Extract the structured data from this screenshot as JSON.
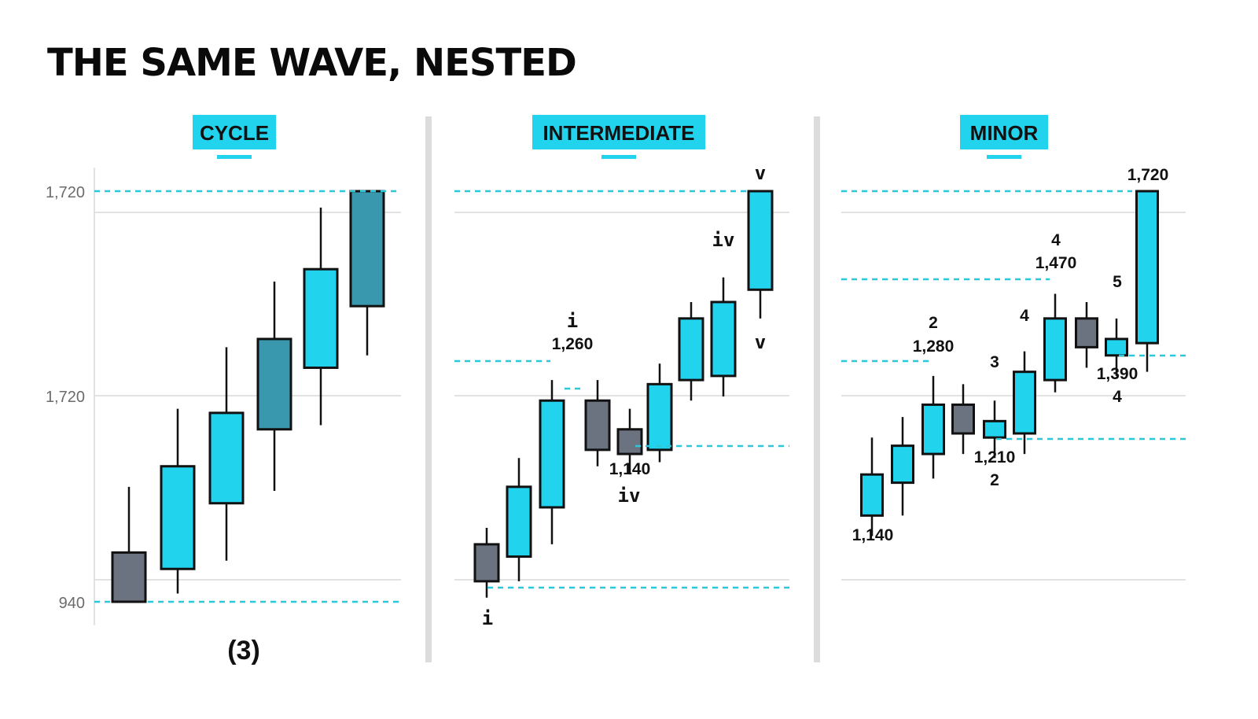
{
  "title": "THE SAME WAVE, NESTED",
  "colors": {
    "bull": "#22d3ee",
    "bull_dark": "#3a98ae",
    "bear": "#6b7280",
    "outline": "#111111",
    "dashed": "#2ec7d8",
    "grid": "#d9d9d9",
    "divider": "#dcdcdc"
  },
  "chart_data": [
    {
      "type": "candlestick",
      "title": "CYCLE",
      "y_tick_labels": [
        "1,720",
        "1,720",
        "940"
      ],
      "bottom_label": "(3)",
      "candles": [
        {
          "open": 0.0,
          "close": 0.12,
          "high": 0.28,
          "low": 0.0,
          "color": "bear"
        },
        {
          "open": 0.08,
          "close": 0.33,
          "high": 0.47,
          "low": 0.02,
          "color": "bull"
        },
        {
          "open": 0.24,
          "close": 0.46,
          "high": 0.62,
          "low": 0.1,
          "color": "bull"
        },
        {
          "open": 0.42,
          "close": 0.64,
          "high": 0.78,
          "low": 0.27,
          "color": "bull_dark"
        },
        {
          "open": 0.57,
          "close": 0.81,
          "high": 0.96,
          "low": 0.43,
          "color": "bull"
        },
        {
          "open": 0.72,
          "close": 1.0,
          "high": 1.0,
          "low": 0.6,
          "color": "bull_dark"
        }
      ]
    },
    {
      "type": "candlestick",
      "title": "INTERMEDIATE",
      "annotations": [
        "i",
        "1,260",
        "1,140",
        "iv",
        "iv",
        "v",
        "v",
        "i"
      ],
      "candles": [
        {
          "open": 0.05,
          "close": 0.14,
          "high": 0.18,
          "low": 0.01,
          "color": "bear"
        },
        {
          "open": 0.11,
          "close": 0.28,
          "high": 0.35,
          "low": 0.05,
          "color": "bull"
        },
        {
          "open": 0.23,
          "close": 0.49,
          "high": 0.54,
          "low": 0.14,
          "color": "bull"
        },
        {
          "open": 0.49,
          "close": 0.37,
          "high": 0.54,
          "low": 0.33,
          "color": "bear"
        },
        {
          "open": 0.42,
          "close": 0.36,
          "high": 0.47,
          "low": 0.31,
          "color": "bear"
        },
        {
          "open": 0.37,
          "close": 0.53,
          "high": 0.58,
          "low": 0.34,
          "color": "bull"
        },
        {
          "open": 0.54,
          "close": 0.69,
          "high": 0.73,
          "low": 0.49,
          "color": "bull"
        },
        {
          "open": 0.55,
          "close": 0.73,
          "high": 0.79,
          "low": 0.5,
          "color": "bull"
        },
        {
          "open": 0.76,
          "close": 1.0,
          "high": 1.0,
          "low": 0.69,
          "color": "bull"
        }
      ]
    },
    {
      "type": "candlestick",
      "title": "MINOR",
      "annotations": [
        "1,140",
        "2",
        "1,280",
        "3",
        "1,210",
        "2",
        "4",
        "4",
        "1,470",
        "5",
        "1,390",
        "4",
        "1,720"
      ],
      "candles": [
        {
          "open": 0.21,
          "close": 0.31,
          "high": 0.4,
          "low": 0.16,
          "color": "bull"
        },
        {
          "open": 0.29,
          "close": 0.38,
          "high": 0.45,
          "low": 0.21,
          "color": "bull"
        },
        {
          "open": 0.36,
          "close": 0.48,
          "high": 0.55,
          "low": 0.3,
          "color": "bull"
        },
        {
          "open": 0.48,
          "close": 0.41,
          "high": 0.53,
          "low": 0.36,
          "color": "bear"
        },
        {
          "open": 0.4,
          "close": 0.44,
          "high": 0.49,
          "low": 0.35,
          "color": "bull"
        },
        {
          "open": 0.41,
          "close": 0.56,
          "high": 0.61,
          "low": 0.36,
          "color": "bull"
        },
        {
          "open": 0.54,
          "close": 0.69,
          "high": 0.75,
          "low": 0.51,
          "color": "bull"
        },
        {
          "open": 0.69,
          "close": 0.62,
          "high": 0.73,
          "low": 0.57,
          "color": "bear"
        },
        {
          "open": 0.6,
          "close": 0.64,
          "high": 0.69,
          "low": 0.55,
          "color": "bull"
        },
        {
          "open": 0.63,
          "close": 1.0,
          "high": 1.0,
          "low": 0.56,
          "color": "bull"
        }
      ]
    }
  ]
}
